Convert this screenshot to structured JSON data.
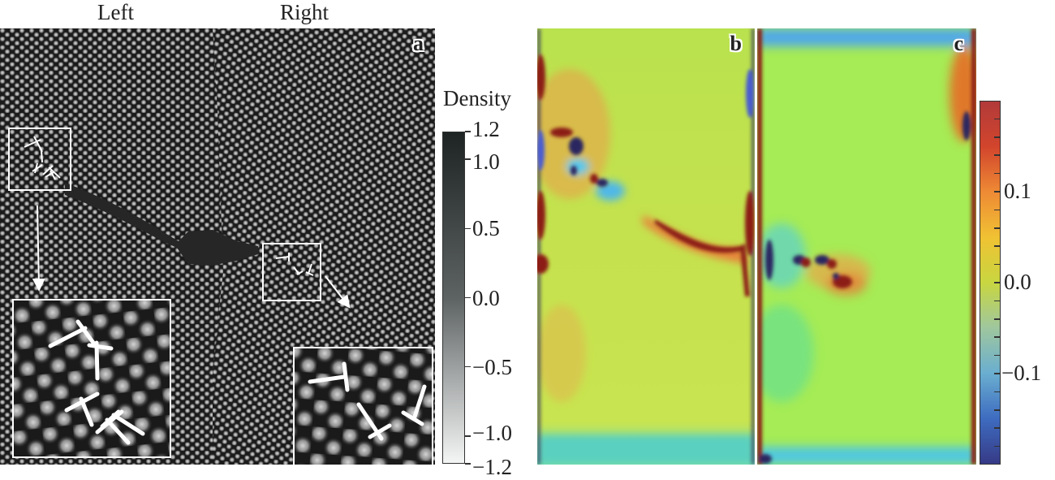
{
  "figure": {
    "column_labels": {
      "left": "Left",
      "right": "Right"
    },
    "panels": [
      {
        "letter": "a",
        "kind": "density-field",
        "description": "Grayscale crystal density field with a dark grain-boundary crack; two boxed regions with dislocation symbols, enlarged in insets"
      },
      {
        "letter": "b",
        "kind": "stress-field",
        "description": "Colour-mapped field for left grain"
      },
      {
        "letter": "c",
        "kind": "stress-field",
        "description": "Colour-mapped field for right grain"
      }
    ],
    "insets": [
      {
        "name": "left-inset",
        "dislocation_count": 5
      },
      {
        "name": "right-inset",
        "dislocation_count": 3
      }
    ]
  },
  "chart_data": [
    {
      "type": "heatmap",
      "panel": "a",
      "title": "",
      "colorbar": {
        "title": "Density",
        "colormap": "gray-reversed",
        "range": [
          -1.2,
          1.2
        ],
        "ticks": [
          1.2,
          1.0,
          0.5,
          0.0,
          -0.5,
          -1.0,
          -1.2
        ],
        "tick_labels": [
          "1.2",
          "1.0",
          "0.5",
          "0.0",
          "−0.5",
          "−1.0",
          "−1.2"
        ],
        "color_min": "#f4f5f5",
        "color_max": "#1e2324"
      }
    },
    {
      "type": "heatmap",
      "panels": [
        "b",
        "c"
      ],
      "title": "",
      "colorbar": {
        "title": "",
        "colormap": "turbo-like",
        "range": [
          -0.2,
          0.2
        ],
        "major_ticks": [
          0.1,
          0.0,
          -0.1
        ],
        "tick_labels": [
          "0.1",
          "0.0",
          "−0.1"
        ],
        "minor_tick_step": 0.02,
        "stops": [
          "#363a86",
          "#3e6cc0",
          "#6aaed0",
          "#9fc79e",
          "#c8d640",
          "#f0c233",
          "#ee8a35",
          "#d2452c",
          "#b23a3a"
        ]
      },
      "background_color": "#b6e64e"
    }
  ]
}
